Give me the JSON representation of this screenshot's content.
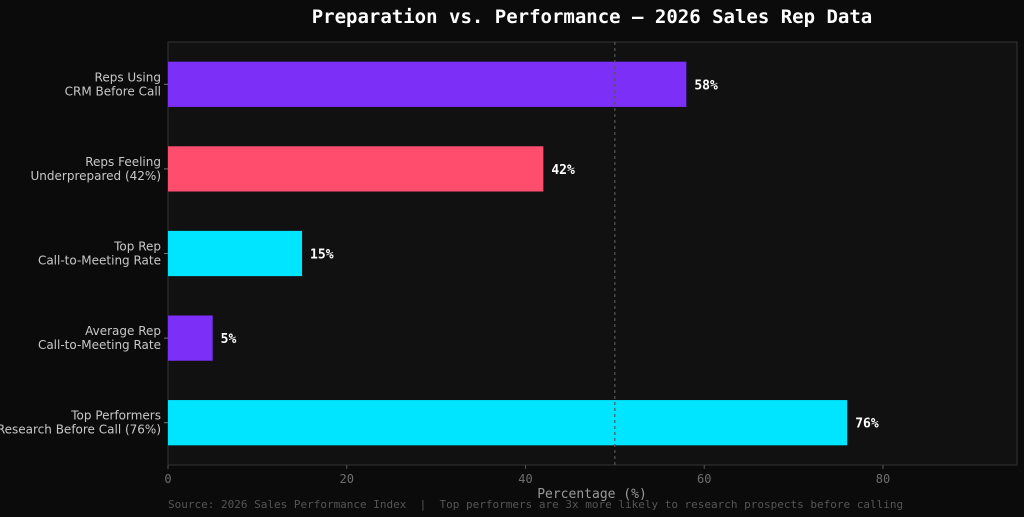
{
  "chart_data": {
    "type": "bar",
    "orientation": "horizontal",
    "title": "Preparation vs. Performance — 2026 Sales Rep Data",
    "xlabel": "Percentage (%)",
    "ylabel": "",
    "xlim": [
      0,
      95
    ],
    "xticks": [
      0,
      20,
      40,
      60,
      80
    ],
    "reference_line": 50,
    "grid": false,
    "categories": [
      [
        "Reps Using",
        "CRM Before Call"
      ],
      [
        "Reps Feeling",
        "Underprepared (42%)"
      ],
      [
        "Top Rep",
        "Call-to-Meeting Rate"
      ],
      [
        "Average Rep",
        "Call-to-Meeting Rate"
      ],
      [
        "Top Performers",
        "Research Before Call (76%)"
      ]
    ],
    "values": [
      58,
      42,
      15,
      5,
      76
    ],
    "value_labels": [
      "58%",
      "42%",
      "15%",
      "5%",
      "76%"
    ],
    "colors": [
      "#7b2ff7",
      "#ff4d6d",
      "#00e5ff",
      "#7b2ff7",
      "#00e5ff"
    ]
  },
  "footer": {
    "source": "Source: 2026 Sales Performance Index  |  Top performers are 3x more likely to research prospects before calling"
  },
  "theme": {
    "background": "#0b0b0b",
    "plot_background": "#111111",
    "axis_color": "#333333"
  }
}
